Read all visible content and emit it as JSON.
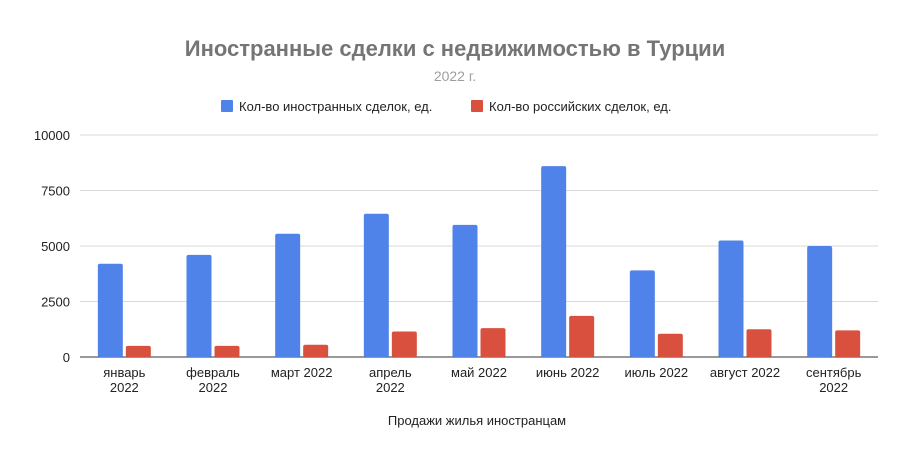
{
  "chart_data": {
    "type": "bar",
    "title": "Иностранные сделки с недвижимостью в Турции",
    "subtitle": "2022 г.",
    "xlabel": "Продажи жилья иностранцам",
    "ylabel": "",
    "ylim": [
      0,
      10000
    ],
    "yticks": [
      "0",
      "2500",
      "5000",
      "7500",
      "10000"
    ],
    "grid": true,
    "legend_position": "top",
    "categories": [
      [
        "январь",
        "2022"
      ],
      [
        "февраль",
        "2022"
      ],
      [
        "март 2022"
      ],
      [
        "апрель",
        "2022"
      ],
      [
        "май 2022"
      ],
      [
        "июнь 2022"
      ],
      [
        "июль 2022"
      ],
      [
        "август 2022"
      ],
      [
        "сентябрь",
        "2022"
      ]
    ],
    "series": [
      {
        "name": "Кол-во иностранных сделок, ед.",
        "color": "#5083e9",
        "values": [
          4200,
          4600,
          5550,
          6450,
          5950,
          8600,
          3900,
          5250,
          5000
        ]
      },
      {
        "name": "Кол-во российских сделок, ед.",
        "color": "#d9503f",
        "values": [
          500,
          500,
          550,
          1150,
          1300,
          1850,
          1050,
          1250,
          1200
        ]
      }
    ]
  }
}
